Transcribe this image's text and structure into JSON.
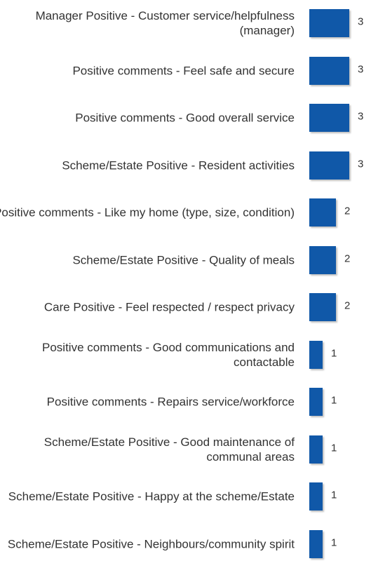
{
  "chart_data": {
    "type": "bar",
    "orientation": "horizontal",
    "color": "#1058a8",
    "categories": [
      "Manager Positive - Customer service/helpfulness (manager)",
      "Positive comments - Feel safe and secure",
      "Positive comments - Good overall service",
      "Scheme/Estate Positive - Resident activities",
      "Positive comments - Like my home (type, size, condition)",
      "Scheme/Estate Positive - Quality of meals",
      "Care Positive - Feel respected / respect privacy",
      "Positive comments - Good communications and contactable",
      "Positive comments - Repairs service/workforce",
      "Scheme/Estate Positive - Good maintenance of communal areas",
      "Scheme/Estate Positive - Happy at the scheme/Estate",
      "Scheme/Estate Positive - Neighbours/community spirit"
    ],
    "values": [
      3,
      3,
      3,
      3,
      2,
      2,
      2,
      1,
      1,
      1,
      1,
      1
    ]
  }
}
